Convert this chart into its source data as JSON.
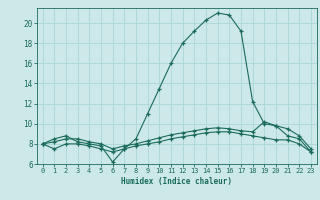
{
  "xlabel": "Humidex (Indice chaleur)",
  "background_color": "#cce8e8",
  "grid_color": "#b0d8d8",
  "line_color": "#1a6b5a",
  "xlim": [
    -0.5,
    23.5
  ],
  "ylim": [
    6,
    21.5
  ],
  "xticks": [
    0,
    1,
    2,
    3,
    4,
    5,
    6,
    7,
    8,
    9,
    10,
    11,
    12,
    13,
    14,
    15,
    16,
    17,
    18,
    19,
    20,
    21,
    22,
    23
  ],
  "yticks": [
    6,
    8,
    10,
    12,
    14,
    16,
    18,
    20
  ],
  "series1_x": [
    0,
    1,
    2,
    3,
    4,
    5,
    6,
    7,
    8,
    9,
    10,
    11,
    12,
    13,
    14,
    15,
    16,
    17,
    18,
    19,
    20,
    21,
    22,
    23
  ],
  "series1_y": [
    8.0,
    8.5,
    8.8,
    8.2,
    8.0,
    7.8,
    6.2,
    7.5,
    8.5,
    11.0,
    13.5,
    16.0,
    18.0,
    19.2,
    20.3,
    21.0,
    20.8,
    19.2,
    12.2,
    10.0,
    9.8,
    8.8,
    8.5,
    7.2
  ],
  "series2_x": [
    0,
    1,
    2,
    3,
    4,
    5,
    6,
    7,
    8,
    9,
    10,
    11,
    12,
    13,
    14,
    15,
    16,
    17,
    18,
    19,
    20,
    21,
    22,
    23
  ],
  "series2_y": [
    8.0,
    8.2,
    8.5,
    8.5,
    8.2,
    8.0,
    7.5,
    7.8,
    8.0,
    8.3,
    8.6,
    8.9,
    9.1,
    9.3,
    9.5,
    9.6,
    9.5,
    9.3,
    9.2,
    10.2,
    9.8,
    9.5,
    8.8,
    7.5
  ],
  "series3_x": [
    0,
    1,
    2,
    3,
    4,
    5,
    6,
    7,
    8,
    9,
    10,
    11,
    12,
    13,
    14,
    15,
    16,
    17,
    18,
    19,
    20,
    21,
    22,
    23
  ],
  "series3_y": [
    8.0,
    7.5,
    8.0,
    8.0,
    7.8,
    7.5,
    7.2,
    7.5,
    7.8,
    8.0,
    8.2,
    8.5,
    8.7,
    8.9,
    9.1,
    9.2,
    9.2,
    9.0,
    8.8,
    8.6,
    8.4,
    8.4,
    8.0,
    7.2
  ],
  "marker": "+"
}
